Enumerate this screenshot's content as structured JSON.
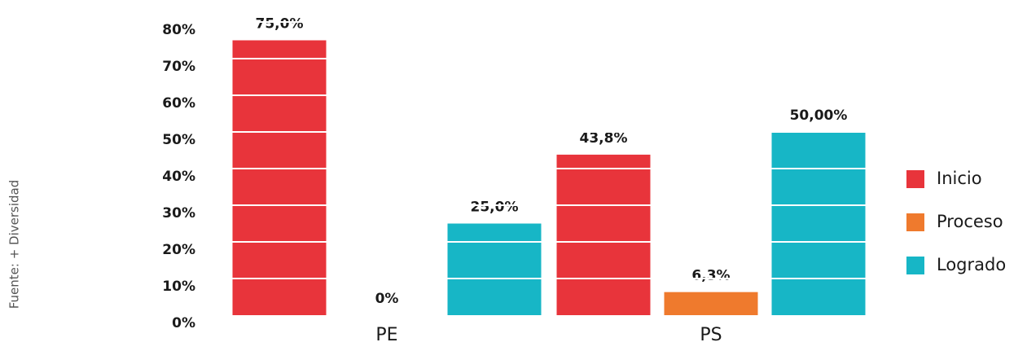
{
  "chart_data": {
    "type": "bar",
    "source": "Fuente: + Diversidad",
    "categories": [
      "PE",
      "PS"
    ],
    "series": [
      {
        "name": "Inicio",
        "color": "#e8343b",
        "values": [
          75,
          43.8
        ],
        "value_labels": [
          "75,0%",
          "43,8%"
        ]
      },
      {
        "name": "Proceso",
        "color": "#ef7a2d",
        "values": [
          0,
          6.3
        ],
        "value_labels": [
          "0%",
          "6,3%"
        ]
      },
      {
        "name": "Logrado",
        "color": "#17b6c6",
        "values": [
          25,
          50
        ],
        "value_labels": [
          "25,0%",
          "50,00%"
        ]
      }
    ],
    "ylim": [
      0,
      80
    ],
    "yticks": [
      {
        "value": 0,
        "label": "0%"
      },
      {
        "value": 10,
        "label": "10%"
      },
      {
        "value": 20,
        "label": "20%"
      },
      {
        "value": 30,
        "label": "30%"
      },
      {
        "value": 40,
        "label": "40%"
      },
      {
        "value": 50,
        "label": "50%"
      },
      {
        "value": 60,
        "label": "60%"
      },
      {
        "value": 70,
        "label": "70%"
      },
      {
        "value": 80,
        "label": "80%"
      }
    ],
    "grid": true,
    "legend": "right"
  }
}
